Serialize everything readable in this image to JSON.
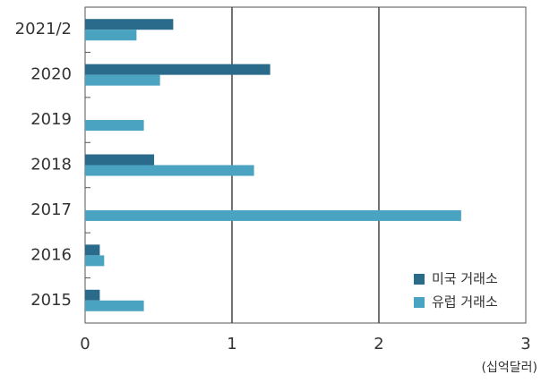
{
  "chart_data": {
    "type": "barh",
    "x_label": "(십억달러)",
    "categories": [
      "2021/2",
      "2020",
      "2019",
      "2018",
      "2017",
      "2016",
      "2015"
    ],
    "series": [
      {
        "name": "미국 거래소",
        "color": "#2a6a8a",
        "values": [
          0.6,
          1.26,
          null,
          0.47,
          null,
          0.1,
          0.1
        ]
      },
      {
        "name": "유럽 거래소",
        "color": "#4aa3c0",
        "values": [
          0.35,
          0.51,
          0.4,
          1.15,
          2.56,
          0.13,
          0.4
        ]
      }
    ],
    "xlim": [
      0,
      3
    ],
    "xticks": [
      0,
      1,
      2,
      3
    ],
    "grid": true,
    "legend": "lower right"
  }
}
